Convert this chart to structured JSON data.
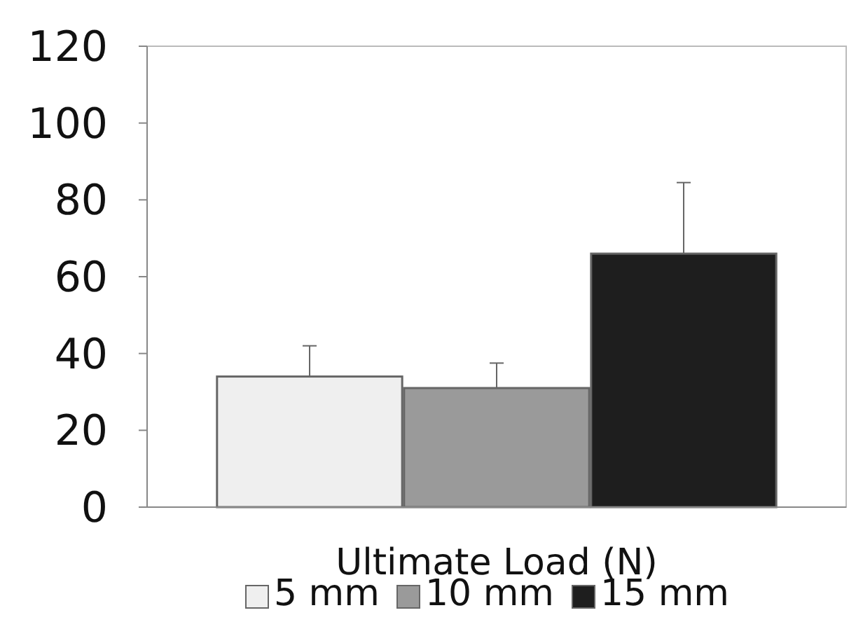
{
  "chart_data": {
    "type": "bar",
    "xlabel": "Ultimate Load (N)",
    "categories": [
      null
    ],
    "series": [
      {
        "name": "5 mm",
        "color": "#efefef",
        "values": [
          34
        ],
        "errors": [
          [
            34,
            42
          ]
        ]
      },
      {
        "name": "10 mm",
        "color": "#9a9a9a",
        "values": [
          31
        ],
        "errors": [
          [
            31,
            37.5
          ]
        ]
      },
      {
        "name": "15 mm",
        "color": "#1e1e1e",
        "values": [
          66
        ],
        "errors": [
          [
            66,
            84.5
          ]
        ]
      }
    ],
    "ylim": [
      0,
      120
    ],
    "yticks": [
      0,
      20,
      40,
      60,
      80,
      100,
      120
    ],
    "grid": false,
    "legend": "bottom"
  }
}
